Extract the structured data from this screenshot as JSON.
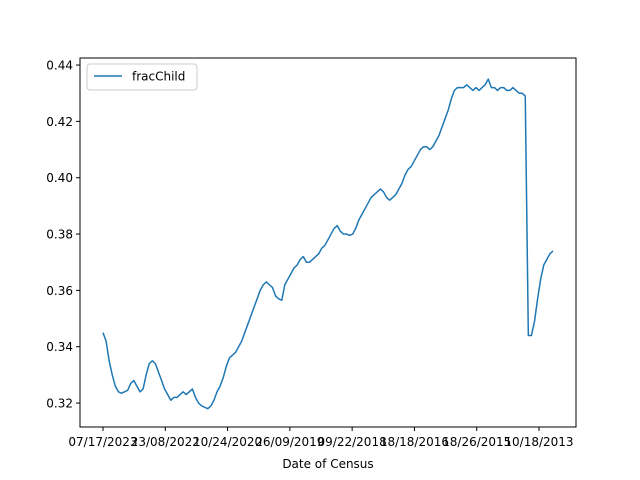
{
  "chart_data": {
    "type": "line",
    "xlabel": "Date of Census",
    "ylabel": "",
    "ylim": [
      0.3115,
      0.4425
    ],
    "y_ticks": [
      0.32,
      0.34,
      0.36,
      0.38,
      0.4,
      0.42,
      0.44
    ],
    "y_tick_labels": [
      "0.32",
      "0.34",
      "0.36",
      "0.38",
      "0.40",
      "0.42",
      "0.44"
    ],
    "x_tick_labels": [
      "07/17/2023",
      "23/08/2022",
      "10/24/2020",
      "26/09/2019",
      "09/22/2018",
      "18/18/2016",
      "18/26/2015",
      "10/18/2013"
    ],
    "legend": {
      "placement": "upper-left",
      "entries": [
        "fracChild"
      ]
    },
    "grid": false,
    "series": [
      {
        "name": "fracChild",
        "color": "#1f77b4",
        "points": [
          [
            0,
            0.345
          ],
          [
            1,
            0.342
          ],
          [
            2,
            0.335
          ],
          [
            3,
            0.33
          ],
          [
            4,
            0.326
          ],
          [
            5,
            0.324
          ],
          [
            6,
            0.3235
          ],
          [
            7,
            0.324
          ],
          [
            8,
            0.3245
          ],
          [
            9,
            0.327
          ],
          [
            10,
            0.328
          ],
          [
            11,
            0.326
          ],
          [
            12,
            0.324
          ],
          [
            13,
            0.325
          ],
          [
            14,
            0.33
          ],
          [
            15,
            0.334
          ],
          [
            16,
            0.335
          ],
          [
            17,
            0.334
          ],
          [
            18,
            0.331
          ],
          [
            19,
            0.328
          ],
          [
            20,
            0.325
          ],
          [
            21,
            0.323
          ],
          [
            22,
            0.321
          ],
          [
            23,
            0.322
          ],
          [
            24,
            0.322
          ],
          [
            25,
            0.323
          ],
          [
            26,
            0.324
          ],
          [
            27,
            0.323
          ],
          [
            28,
            0.324
          ],
          [
            29,
            0.325
          ],
          [
            30,
            0.322
          ],
          [
            31,
            0.32
          ],
          [
            32,
            0.319
          ],
          [
            33,
            0.3185
          ],
          [
            34,
            0.318
          ],
          [
            35,
            0.319
          ],
          [
            36,
            0.321
          ],
          [
            37,
            0.324
          ],
          [
            38,
            0.326
          ],
          [
            39,
            0.329
          ],
          [
            40,
            0.333
          ],
          [
            41,
            0.336
          ],
          [
            42,
            0.337
          ],
          [
            43,
            0.338
          ],
          [
            44,
            0.34
          ],
          [
            45,
            0.342
          ],
          [
            46,
            0.345
          ],
          [
            47,
            0.348
          ],
          [
            48,
            0.351
          ],
          [
            49,
            0.354
          ],
          [
            50,
            0.357
          ],
          [
            51,
            0.36
          ],
          [
            52,
            0.362
          ],
          [
            53,
            0.363
          ],
          [
            54,
            0.362
          ],
          [
            55,
            0.361
          ],
          [
            56,
            0.358
          ],
          [
            57,
            0.357
          ],
          [
            58,
            0.3565
          ],
          [
            59,
            0.362
          ],
          [
            60,
            0.364
          ],
          [
            61,
            0.366
          ],
          [
            62,
            0.368
          ],
          [
            63,
            0.369
          ],
          [
            64,
            0.371
          ],
          [
            65,
            0.372
          ],
          [
            66,
            0.37
          ],
          [
            67,
            0.37
          ],
          [
            68,
            0.371
          ],
          [
            69,
            0.372
          ],
          [
            70,
            0.373
          ],
          [
            71,
            0.375
          ],
          [
            72,
            0.376
          ],
          [
            73,
            0.378
          ],
          [
            74,
            0.38
          ],
          [
            75,
            0.382
          ],
          [
            76,
            0.383
          ],
          [
            77,
            0.381
          ],
          [
            78,
            0.38
          ],
          [
            79,
            0.38
          ],
          [
            80,
            0.3795
          ],
          [
            81,
            0.38
          ],
          [
            82,
            0.382
          ],
          [
            83,
            0.385
          ],
          [
            84,
            0.387
          ],
          [
            85,
            0.389
          ],
          [
            86,
            0.391
          ],
          [
            87,
            0.393
          ],
          [
            88,
            0.394
          ],
          [
            89,
            0.395
          ],
          [
            90,
            0.396
          ],
          [
            91,
            0.395
          ],
          [
            92,
            0.393
          ],
          [
            93,
            0.392
          ],
          [
            94,
            0.393
          ],
          [
            95,
            0.394
          ],
          [
            96,
            0.396
          ],
          [
            97,
            0.398
          ],
          [
            98,
            0.401
          ],
          [
            99,
            0.403
          ],
          [
            100,
            0.404
          ],
          [
            101,
            0.406
          ],
          [
            102,
            0.408
          ],
          [
            103,
            0.41
          ],
          [
            104,
            0.411
          ],
          [
            105,
            0.411
          ],
          [
            106,
            0.41
          ],
          [
            107,
            0.411
          ],
          [
            108,
            0.413
          ],
          [
            109,
            0.415
          ],
          [
            110,
            0.418
          ],
          [
            111,
            0.421
          ],
          [
            112,
            0.424
          ],
          [
            113,
            0.428
          ],
          [
            114,
            0.431
          ],
          [
            115,
            0.432
          ],
          [
            116,
            0.432
          ],
          [
            117,
            0.432
          ],
          [
            118,
            0.433
          ],
          [
            119,
            0.432
          ],
          [
            120,
            0.431
          ],
          [
            121,
            0.432
          ],
          [
            122,
            0.431
          ],
          [
            123,
            0.432
          ],
          [
            124,
            0.433
          ],
          [
            125,
            0.435
          ],
          [
            126,
            0.432
          ],
          [
            127,
            0.432
          ],
          [
            128,
            0.431
          ],
          [
            129,
            0.432
          ],
          [
            130,
            0.432
          ],
          [
            131,
            0.431
          ],
          [
            132,
            0.431
          ],
          [
            133,
            0.432
          ],
          [
            134,
            0.431
          ],
          [
            135,
            0.43
          ],
          [
            136,
            0.43
          ],
          [
            137,
            0.429
          ],
          [
            138,
            0.344
          ],
          [
            139,
            0.344
          ],
          [
            140,
            0.349
          ],
          [
            141,
            0.357
          ],
          [
            142,
            0.364
          ],
          [
            143,
            0.369
          ],
          [
            144,
            0.371
          ],
          [
            145,
            0.373
          ],
          [
            146,
            0.374
          ]
        ]
      }
    ]
  }
}
